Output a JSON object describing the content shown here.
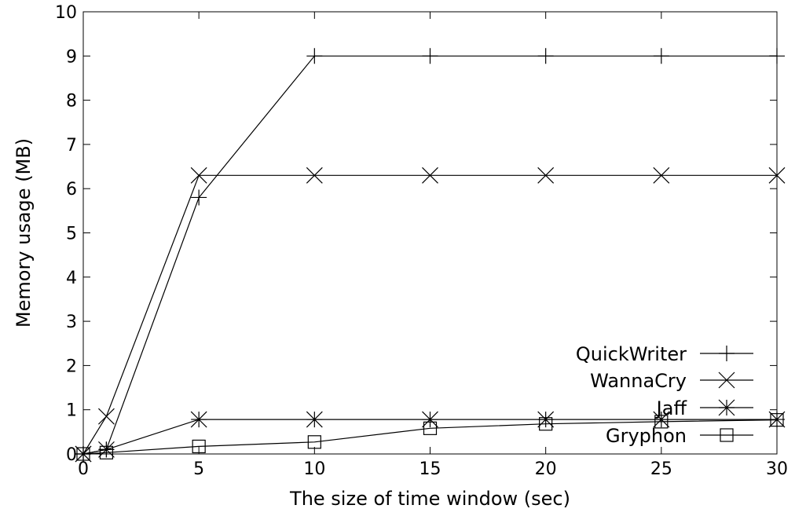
{
  "chart_data": {
    "type": "line",
    "xlabel": "The size of time window (sec)",
    "ylabel": "Memory usage (MB)",
    "xlim": [
      0,
      30
    ],
    "ylim": [
      0,
      10
    ],
    "xticks": [
      0,
      5,
      10,
      15,
      20,
      25,
      30
    ],
    "yticks": [
      0,
      1,
      2,
      3,
      4,
      5,
      6,
      7,
      8,
      9,
      10
    ],
    "grid": false,
    "legend_position": "bottom-right",
    "series": [
      {
        "name": "QuickWriter",
        "marker": "plus",
        "x": [
          0,
          1,
          5,
          10,
          15,
          20,
          25,
          30
        ],
        "y": [
          0,
          0.1,
          5.8,
          9,
          9,
          9,
          9,
          9
        ]
      },
      {
        "name": "WannaCry",
        "marker": "cross",
        "x": [
          0,
          1,
          5,
          10,
          15,
          20,
          25,
          30
        ],
        "y": [
          0,
          0.85,
          6.3,
          6.3,
          6.3,
          6.3,
          6.3,
          6.3
        ]
      },
      {
        "name": "Jaff",
        "marker": "star",
        "x": [
          0,
          1,
          5,
          10,
          15,
          20,
          25,
          30
        ],
        "y": [
          0,
          0.1,
          0.78,
          0.78,
          0.78,
          0.78,
          0.78,
          0.78
        ]
      },
      {
        "name": "Gryphon",
        "marker": "square",
        "x": [
          0,
          1,
          5,
          10,
          15,
          20,
          25,
          30
        ],
        "y": [
          0,
          0.03,
          0.17,
          0.27,
          0.58,
          0.68,
          0.73,
          0.77
        ]
      }
    ]
  }
}
